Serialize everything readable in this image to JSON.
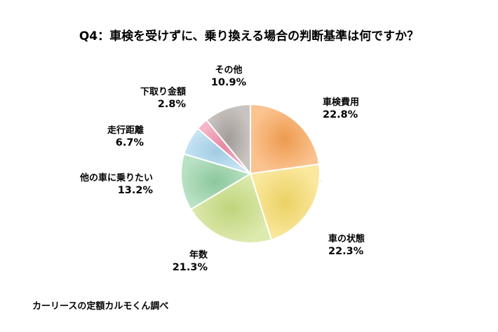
{
  "chart_data": {
    "type": "pie",
    "title": "Q4：車検を受けずに、乗り換える場合の判断基準は何ですか？",
    "source": "カーリースの定額カルモくん調べ",
    "slices": [
      {
        "label": "車検費用",
        "value": 22.8,
        "value_label": "22.8%",
        "color": "#F9A354"
      },
      {
        "label": "車の状態",
        "value": 22.3,
        "value_label": "22.3%",
        "color": "#F7DC69"
      },
      {
        "label": "年数",
        "value": 21.3,
        "value_label": "21.3%",
        "color": "#C9DF82"
      },
      {
        "label": "他の車に乗りたい",
        "value": 13.2,
        "value_label": "13.2%",
        "color": "#93D1A4"
      },
      {
        "label": "走行距離",
        "value": 6.7,
        "value_label": "6.7%",
        "color": "#A9D6EE"
      },
      {
        "label": "下取り金額",
        "value": 2.8,
        "value_label": "2.8%",
        "color": "#F08FAB"
      },
      {
        "label": "その他",
        "value": 10.9,
        "value_label": "10.9%",
        "color": "#ACA49F"
      }
    ]
  }
}
